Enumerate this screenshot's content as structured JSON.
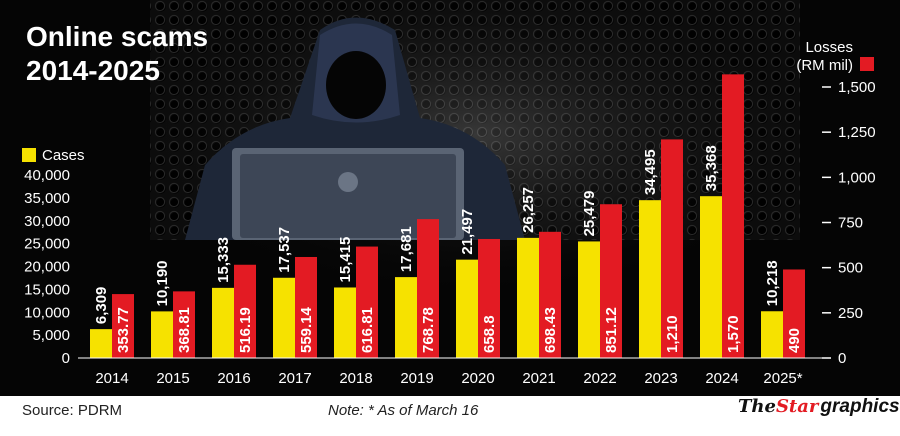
{
  "header": {
    "title_line1": "Online scams",
    "title_line2": "2014-2025"
  },
  "legend": {
    "cases_label": "Cases",
    "losses_label_line1": "Losses",
    "losses_label_line2": "(RM mil)"
  },
  "colors": {
    "cases": "#f6e200",
    "losses": "#e31b23",
    "background": "#0b0b0b",
    "text": "#ffffff"
  },
  "footer": {
    "source": "Source: PDRM",
    "note": "Note: * As of March 16",
    "brand_the": "The",
    "brand_star": "Star",
    "brand_graphics": "graphics"
  },
  "chart_data": {
    "type": "bar",
    "title": "Online scams 2014-2025",
    "categories": [
      "2014",
      "2015",
      "2016",
      "2017",
      "2018",
      "2019",
      "2020",
      "2021",
      "2022",
      "2023",
      "2024",
      "2025*"
    ],
    "series": [
      {
        "name": "Cases",
        "axis": "left",
        "values": [
          6309,
          10190,
          15333,
          17537,
          15415,
          17681,
          21497,
          26257,
          25479,
          34495,
          35368,
          10218
        ],
        "labels": [
          "6,309",
          "10,190",
          "15,333",
          "17,537",
          "15,415",
          "17,681",
          "21,497",
          "26,257",
          "25,479",
          "34,495",
          "35,368",
          "10,218"
        ]
      },
      {
        "name": "Losses (RM mil)",
        "axis": "right",
        "values": [
          353.77,
          368.81,
          516.19,
          559.14,
          616.81,
          768.78,
          658.8,
          698.43,
          851.12,
          1210,
          1570,
          490
        ],
        "labels": [
          "353.77",
          "368.81",
          "516.19",
          "559.14",
          "616.81",
          "768.78",
          "658.8",
          "698.43",
          "851.12",
          "1,210",
          "1,570",
          "490"
        ]
      }
    ],
    "left_axis": {
      "ylim": [
        0,
        40000
      ],
      "ticks": [
        0,
        5000,
        10000,
        15000,
        20000,
        25000,
        30000,
        35000,
        40000
      ],
      "tick_labels": [
        "0",
        "5,000",
        "10,000",
        "15,000",
        "20,000",
        "25,000",
        "30,000",
        "35,000",
        "40,000"
      ]
    },
    "right_axis": {
      "ylim": [
        0,
        1500
      ],
      "ticks": [
        0,
        250,
        500,
        750,
        1000,
        1250,
        1500
      ],
      "tick_labels": [
        "0",
        "250",
        "500",
        "750",
        "1,000",
        "1,250",
        "1,500"
      ]
    },
    "grid": false,
    "legend": "top-left (Cases), top-right (Losses)"
  }
}
